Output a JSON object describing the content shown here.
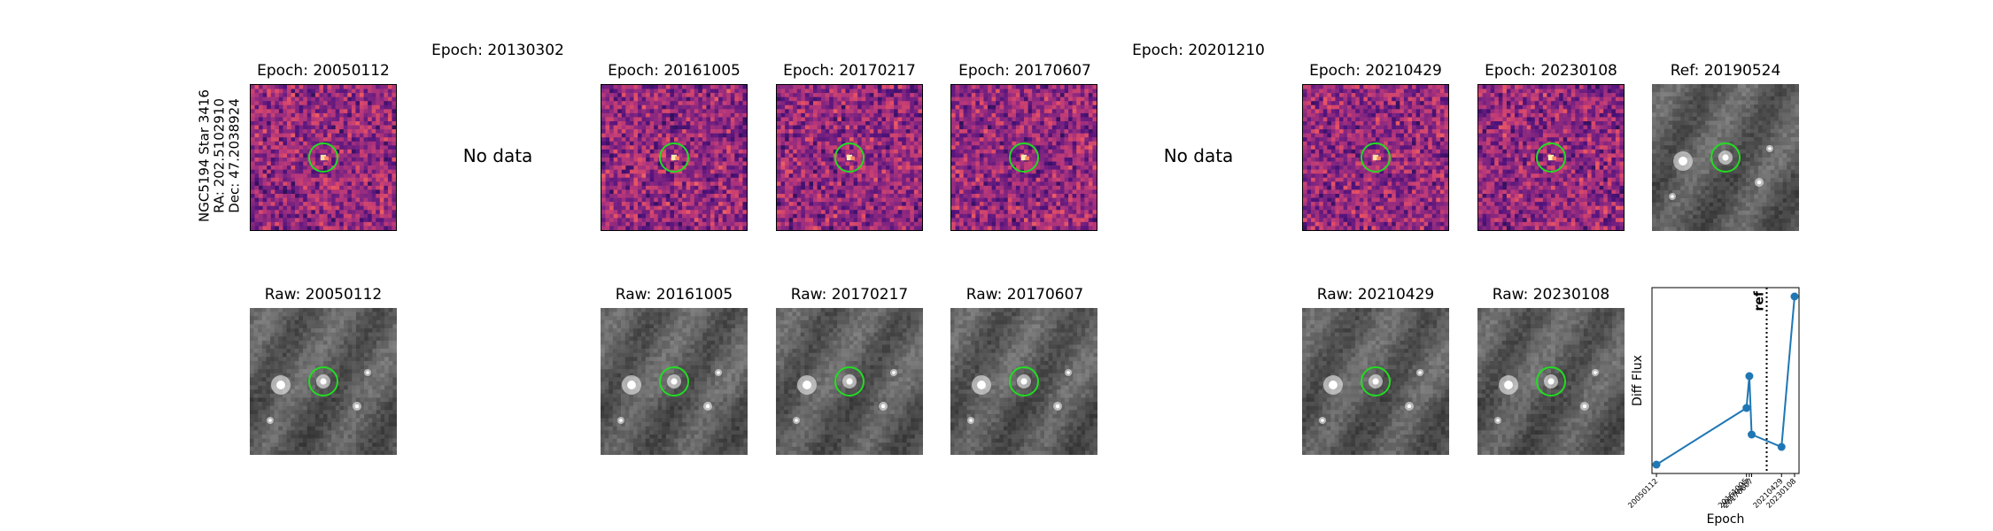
{
  "target": {
    "name": "NGC5194 Star 3416",
    "ra": "RA: 202.5102910",
    "dec": "Dec: 47.2038924"
  },
  "no_data_text": "No data",
  "diff_epochs": [
    {
      "title": "Epoch: 20050112",
      "has_data": true
    },
    {
      "title": "Epoch: 20130302",
      "has_data": false
    },
    {
      "title": "Epoch: 20161005",
      "has_data": true
    },
    {
      "title": "Epoch: 20170217",
      "has_data": true
    },
    {
      "title": "Epoch: 20170607",
      "has_data": true
    },
    {
      "title": "Epoch: 20201210",
      "has_data": false
    },
    {
      "title": "Epoch: 20210429",
      "has_data": true
    },
    {
      "title": "Epoch: 20230108",
      "has_data": true
    }
  ],
  "ref_title": "Ref: 20190524",
  "raw_epochs": [
    {
      "title": "Raw: 20050112"
    },
    {
      "title": "Raw: 20161005"
    },
    {
      "title": "Raw: 20170217"
    },
    {
      "title": "Raw: 20170607"
    },
    {
      "title": "Raw: 20210429"
    },
    {
      "title": "Raw: 20230108"
    }
  ],
  "colors": {
    "circle": "#22dd22",
    "line": "#1f77b4"
  },
  "chart_data": {
    "type": "line",
    "xlabel": "Epoch",
    "ylabel": "Diff Flux",
    "categories": [
      "20050112",
      "20161005",
      "20170217",
      "20170607",
      "20210429",
      "20230108"
    ],
    "x": [
      2005.03,
      2016.76,
      2017.13,
      2017.43,
      2021.32,
      2023.02
    ],
    "x_tick_positions": [
      2016.76,
      2017.13,
      2017.43,
      2021.32,
      2023.02
    ],
    "values": [
      0.05,
      0.37,
      0.55,
      0.22,
      0.15,
      1.0
    ],
    "ylim": [
      0,
      1.05
    ],
    "ref_line": {
      "label": "ref",
      "x": 2019.39
    },
    "grid": false,
    "y_ticks_shown": false
  }
}
